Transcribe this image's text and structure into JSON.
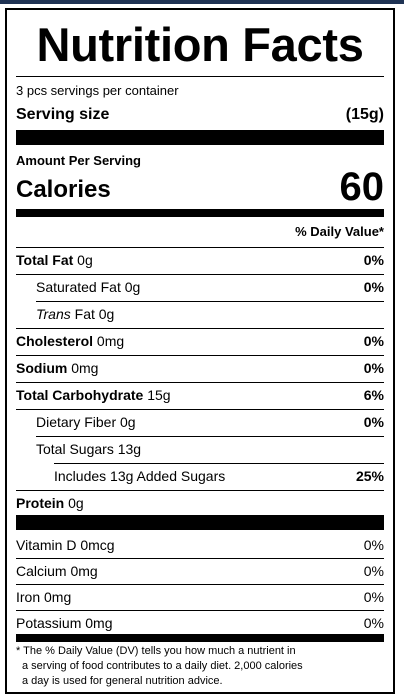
{
  "title": "Nutrition Facts",
  "servings_per_container": "3 pcs servings per container",
  "serving_size_label": "Serving size",
  "serving_size_value": "(15g)",
  "amount_per_serving": "Amount Per Serving",
  "calories_label": "Calories",
  "calories_value": "60",
  "daily_value_header": "% Daily Value*",
  "nutrients": {
    "total_fat": {
      "name": "Total Fat",
      "amount": " 0g",
      "dv": "0%"
    },
    "saturated_fat": {
      "name": "Saturated Fat 0g",
      "dv": "0%"
    },
    "trans_fat": {
      "name_italic": "Trans",
      "name_rest": " Fat 0g"
    },
    "cholesterol": {
      "name": "Cholesterol",
      "amount": " 0mg",
      "dv": "0%"
    },
    "sodium": {
      "name": "Sodium",
      "amount": " 0mg",
      "dv": "0%"
    },
    "total_carbohydrate": {
      "name": "Total Carbohydrate",
      "amount": " 15g",
      "dv": "6%"
    },
    "dietary_fiber": {
      "name": "Dietary Fiber 0g",
      "dv": "0%"
    },
    "total_sugars": {
      "name": "Total Sugars 13g"
    },
    "added_sugars": {
      "name": "Includes 13g Added Sugars",
      "dv": "25%"
    },
    "protein": {
      "name": "Protein",
      "amount": " 0g"
    }
  },
  "vitamins": [
    {
      "name": "Vitamin D 0mcg",
      "dv": "0%"
    },
    {
      "name": "Calcium 0mg",
      "dv": "0%"
    },
    {
      "name": "Iron 0mg",
      "dv": "0%"
    },
    {
      "name": "Potassium 0mg",
      "dv": "0%"
    }
  ],
  "footnote": [
    "* The % Daily Value (DV) tells you how much a nutrient in",
    "a serving of food contributes to a daily diet. 2,000 calories",
    "a day is used for general nutrition advice."
  ],
  "colors": {
    "top_bar": "#1f3354",
    "ink": "#000000"
  }
}
